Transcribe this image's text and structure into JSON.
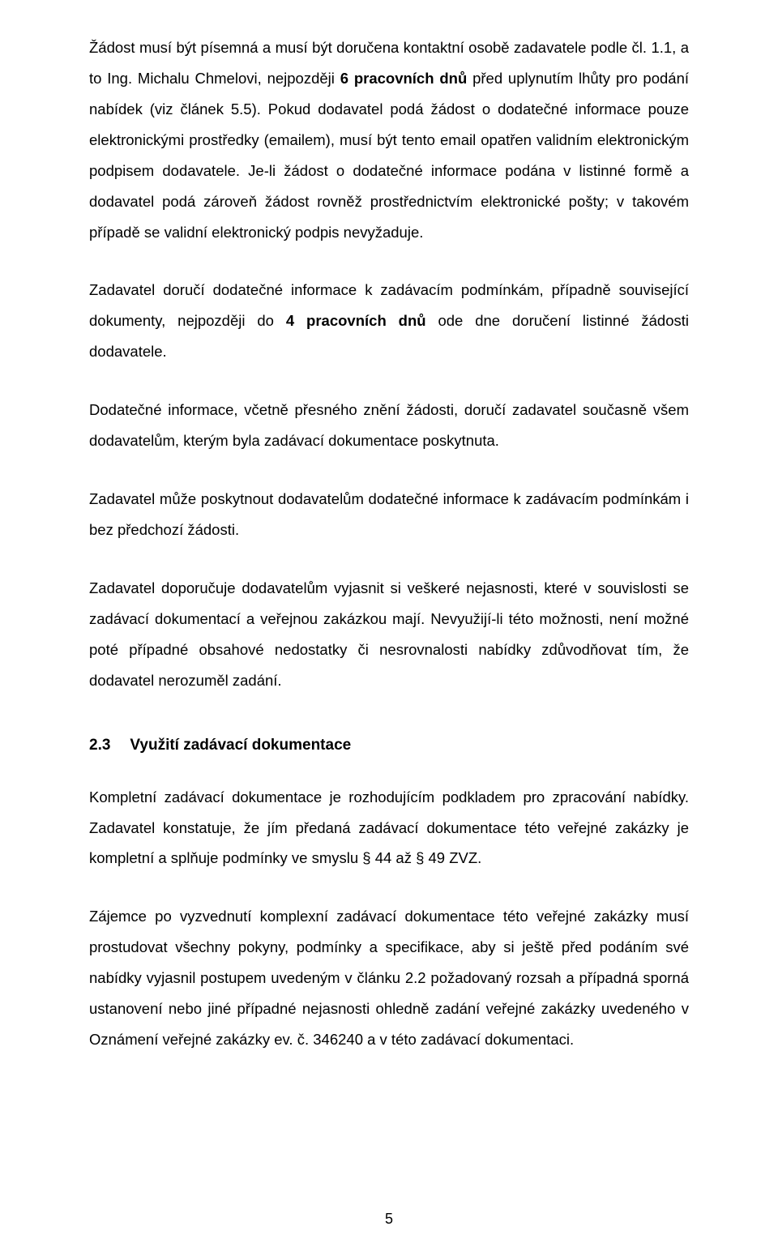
{
  "paragraphs": {
    "p1a": "Žádost musí být písemná a musí být doručena kontaktní osobě zadavatele podle čl. 1.1, a to Ing. Michalu Chmelovi, nejpozději ",
    "p1b": "6 pracovních dnů",
    "p1c": " před uplynutím lhůty pro podání nabídek (viz článek 5.5). Pokud dodavatel podá žádost o dodatečné informace pouze elektronickými prostředky (emailem), musí být tento email opatřen validním elektronickým podpisem dodavatele. Je-li žádost o dodatečné informace podána v listinné formě a dodavatel podá zároveň žádost rovněž prostřednictvím elektronické pošty; v takovém případě se validní elektronický podpis nevyžaduje.",
    "p2a": "Zadavatel doručí dodatečné informace k zadávacím podmínkám, případně související dokumenty, nejpozději do ",
    "p2b": "4 pracovních dnů",
    "p2c": " ode dne doručení listinné žádosti dodavatele.",
    "p3": "Dodatečné informace, včetně přesného znění žádosti, doručí zadavatel současně všem dodavatelům, kterým byla zadávací dokumentace poskytnuta.",
    "p4": "Zadavatel může poskytnout dodavatelům dodatečné informace k zadávacím podmínkám i bez předchozí žádosti.",
    "p5": "Zadavatel doporučuje dodavatelům vyjasnit si veškeré nejasnosti, které v souvislosti se zadávací dokumentací a veřejnou zakázkou mají. Nevyužijí-li této možnosti, není možné poté případné obsahové nedostatky či nesrovnalosti nabídky zdůvodňovat tím, že dodavatel nerozuměl zadání.",
    "p6": "Kompletní zadávací dokumentace je rozhodujícím podkladem pro zpracování nabídky. Zadavatel konstatuje, že jím předaná zadávací dokumentace této veřejné zakázky je kompletní a splňuje podmínky ve smyslu § 44 až § 49 ZVZ.",
    "p7": "Zájemce po vyzvednutí komplexní zadávací dokumentace této veřejné zakázky musí prostudovat všechny pokyny, podmínky a specifikace, aby si ještě před podáním své nabídky vyjasnil postupem uvedeným v článku 2.2 požadovaný rozsah a případná sporná ustanovení nebo jiné případné nejasnosti ohledně zadání veřejné zakázky uvedeného v Oznámení veřejné zakázky ev. č. 346240 a v této zadávací dokumentaci."
  },
  "heading": {
    "num": "2.3",
    "title": "Využití zadávací dokumentace"
  },
  "page_number": "5"
}
